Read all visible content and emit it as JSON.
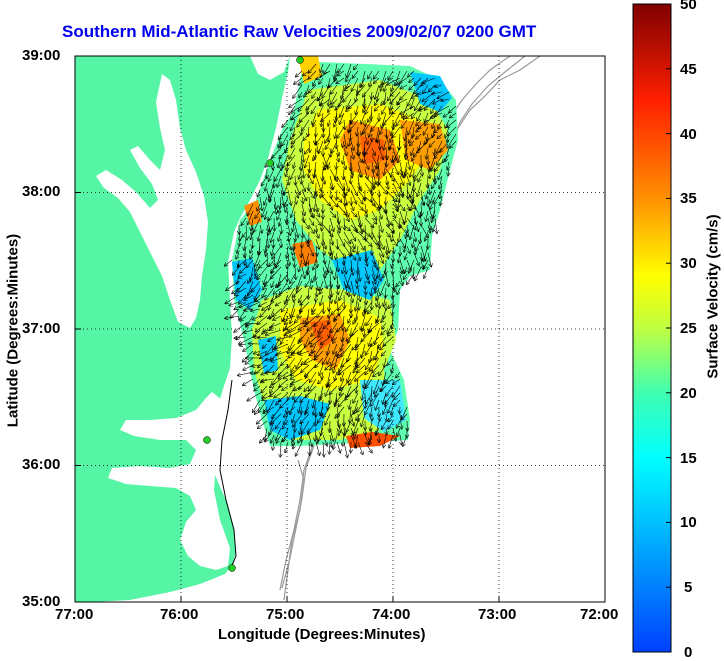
{
  "title": "Southern Mid-Atlantic Raw Velocities 2009/02/07 0200 GMT",
  "xlabel": "Longitude (Degrees:Minutes)",
  "ylabel": "Latitude (Degrees:Minutes)",
  "colorbar_label": "Surface Velocity (cm/s)",
  "x_ticks": [
    "77:00",
    "76:00",
    "75:00",
    "74:00",
    "73:00",
    "72:00"
  ],
  "y_ticks": [
    "39:00",
    "38:00",
    "37:00",
    "36:00",
    "35:00"
  ],
  "colorbar_ticks": [
    "50",
    "45",
    "40",
    "35",
    "30",
    "25",
    "20",
    "15",
    "10",
    "5",
    "0"
  ],
  "colors": {
    "land": "#55f5a5",
    "ocean": "#ffffff",
    "bathymetry": "#999999",
    "title": "#0000ee",
    "station": "#22cc22"
  },
  "chart_data": {
    "type": "heatmap",
    "xlim": [
      -77,
      -72
    ],
    "ylim": [
      35,
      39
    ],
    "colorbar_range": [
      0,
      50
    ],
    "grid": true
  }
}
